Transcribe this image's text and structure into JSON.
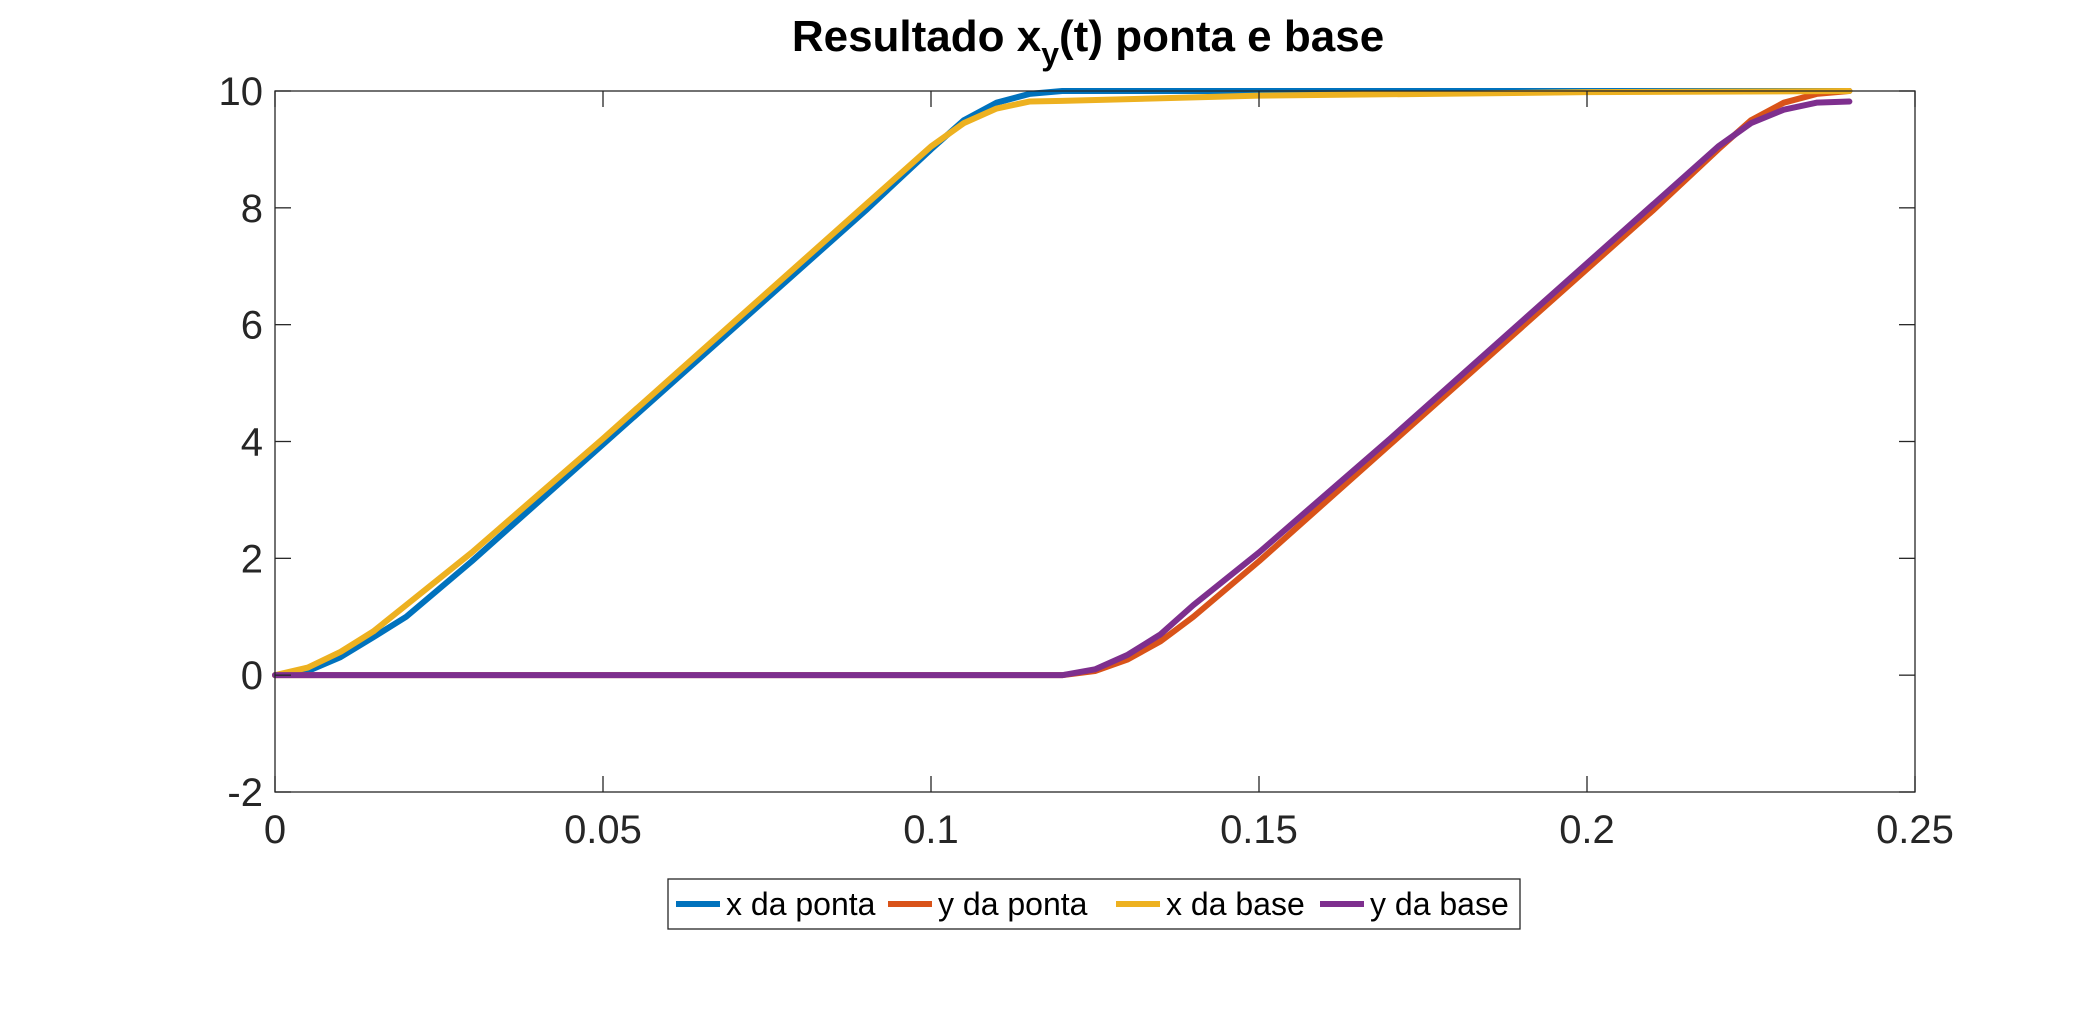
{
  "chart_data": {
    "type": "line",
    "title_main": "Resultado x",
    "title_sub": "y",
    "title_rest": "(t) ponta e base",
    "xlim": [
      0,
      0.25
    ],
    "ylim": [
      -2,
      10
    ],
    "xticks": [
      0,
      0.05,
      0.1,
      0.15,
      0.2,
      0.25
    ],
    "xtick_labels": [
      "0",
      "0.05",
      "0.1",
      "0.15",
      "0.2",
      "0.25"
    ],
    "yticks": [
      -2,
      0,
      2,
      4,
      6,
      8,
      10
    ],
    "ytick_labels": [
      "-2",
      "0",
      "2",
      "4",
      "6",
      "8",
      "10"
    ],
    "grid": false,
    "legend_position": "bottom-outside",
    "series": [
      {
        "name": "x da ponta",
        "color": "#0072BD",
        "x": [
          0,
          0.005,
          0.01,
          0.015,
          0.02,
          0.03,
          0.05,
          0.07,
          0.09,
          0.1,
          0.105,
          0.11,
          0.115,
          0.12,
          0.13,
          0.15,
          0.2,
          0.24
        ],
        "y": [
          0,
          0.07,
          0.31,
          0.65,
          1.0,
          1.95,
          3.95,
          5.95,
          7.95,
          9.0,
          9.5,
          9.8,
          9.95,
          10.0,
          10.0,
          10.0,
          10.0,
          10.0
        ]
      },
      {
        "name": "y da ponta",
        "color": "#D95319",
        "x": [
          0,
          0.1,
          0.12,
          0.125,
          0.13,
          0.135,
          0.14,
          0.15,
          0.17,
          0.19,
          0.21,
          0.22,
          0.225,
          0.23,
          0.235,
          0.24
        ],
        "y": [
          0,
          0,
          0,
          0.07,
          0.27,
          0.58,
          1.0,
          1.95,
          3.95,
          5.95,
          7.95,
          9.0,
          9.5,
          9.8,
          9.95,
          10.0
        ]
      },
      {
        "name": "x da base",
        "color": "#EDB120",
        "x": [
          0,
          0.005,
          0.01,
          0.015,
          0.02,
          0.03,
          0.05,
          0.07,
          0.09,
          0.1,
          0.105,
          0.11,
          0.115,
          0.12,
          0.15,
          0.2,
          0.24
        ],
        "y": [
          0,
          0.13,
          0.4,
          0.75,
          1.2,
          2.1,
          4.05,
          6.05,
          8.05,
          9.05,
          9.45,
          9.7,
          9.82,
          9.83,
          9.92,
          9.98,
          10.0
        ]
      },
      {
        "name": "y da base",
        "color": "#7E2F8E",
        "x": [
          0,
          0.1,
          0.12,
          0.125,
          0.13,
          0.135,
          0.14,
          0.15,
          0.17,
          0.19,
          0.21,
          0.22,
          0.225,
          0.23,
          0.235,
          0.24
        ],
        "y": [
          0,
          0,
          0,
          0.1,
          0.35,
          0.7,
          1.2,
          2.1,
          4.05,
          6.05,
          8.05,
          9.05,
          9.45,
          9.68,
          9.8,
          9.82
        ]
      }
    ]
  }
}
